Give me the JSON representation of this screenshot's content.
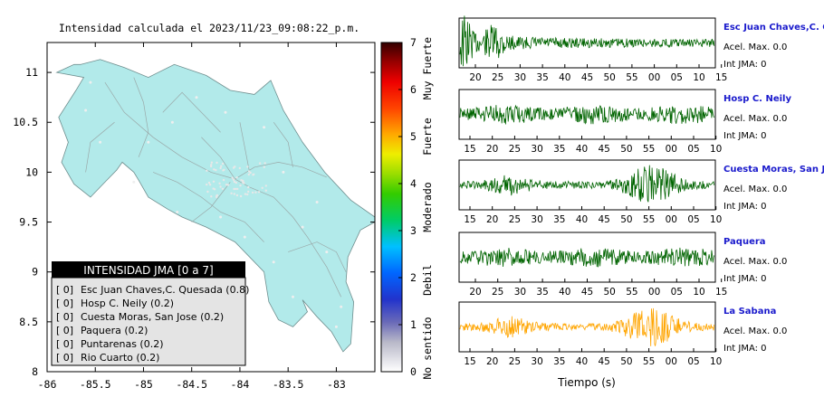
{
  "chart_data": [
    {
      "type": "map",
      "title": "Intensidad calculada el 2023/11/23_09:08:22_p.m.",
      "x_ticks": [
        "-86",
        "-85.5",
        "-85",
        "-84.5",
        "-84",
        "-83.5",
        "-83"
      ],
      "y_ticks": [
        "8",
        "8.5",
        "9",
        "9.5",
        "10",
        "10.5",
        "11"
      ],
      "xlim": [
        -86,
        -82.6
      ],
      "ylim": [
        8,
        11.3
      ],
      "colorbar": {
        "range": [
          0,
          7
        ],
        "ticks": [
          "0",
          "1",
          "2",
          "3",
          "4",
          "5",
          "6",
          "7"
        ],
        "labels": [
          "No sentido",
          "Debil",
          "Moderado",
          "Fuerte",
          "Muy Fuerte"
        ]
      },
      "legend": {
        "title": "INTENSIDAD JMA [0 a 7]",
        "entries": [
          {
            "level": "[ 0]",
            "station": "Esc Juan Chaves,C. Quesada (0.8)"
          },
          {
            "level": "[ 0]",
            "station": "Hosp C. Neily (0.2)"
          },
          {
            "level": "[ 0]",
            "station": "Cuesta Moras, San Jose (0.2)"
          },
          {
            "level": "[ 0]",
            "station": "Paquera (0.2)"
          },
          {
            "level": "[ 0]",
            "station": "Puntarenas (0.2)"
          },
          {
            "level": "[ 0]",
            "station": "Rio Cuarto (0.2)"
          }
        ]
      },
      "colors": {
        "land": "#b2eaea",
        "legend_header": "#000000",
        "legend_body": "#e4e4e4"
      }
    },
    {
      "type": "line",
      "xlabel": "Tiempo (s)",
      "series": [
        {
          "name": "Esc Juan Chaves,C. Quesada",
          "accel": "Acel. Max. 0.0",
          "jma": "Int JMA: 0",
          "color": "#006400",
          "ticks": [
            "20",
            "25",
            "30",
            "35",
            "40",
            "45",
            "50",
            "55",
            "00",
            "05",
            "10",
            "15"
          ],
          "first_tick_value": 20,
          "envelope": "early"
        },
        {
          "name": "Hosp C. Neily",
          "accel": "Acel. Max. 0.0",
          "jma": "Int JMA: 0",
          "color": "#006400",
          "ticks": [
            "15",
            "20",
            "25",
            "30",
            "35",
            "40",
            "45",
            "50",
            "55",
            "00",
            "05",
            "10"
          ],
          "first_tick_value": 15,
          "envelope": "noise"
        },
        {
          "name": "Cuesta Moras, San Jose",
          "accel": "Acel. Max. 0.0",
          "jma": "Int JMA: 0",
          "color": "#006400",
          "ticks": [
            "15",
            "20",
            "25",
            "30",
            "35",
            "40",
            "45",
            "50",
            "55",
            "00",
            "05",
            "10"
          ],
          "first_tick_value": 15,
          "envelope": "late"
        },
        {
          "name": "Paquera",
          "accel": "Acel. Max. 0.0",
          "jma": "Int JMA: 0",
          "color": "#006400",
          "ticks": [
            "20",
            "25",
            "30",
            "35",
            "40",
            "45",
            "50",
            "55",
            "00",
            "05",
            "10",
            "15"
          ],
          "first_tick_value": 20,
          "envelope": "noise"
        },
        {
          "name": "La Sabana",
          "accel": "Acel. Max. 0.0",
          "jma": "Int JMA: 0",
          "color": "#ffa500",
          "ticks": [
            "15",
            "20",
            "25",
            "30",
            "35",
            "40",
            "45",
            "50",
            "55",
            "00",
            "05",
            "10"
          ],
          "first_tick_value": 15,
          "envelope": "late"
        }
      ]
    }
  ]
}
